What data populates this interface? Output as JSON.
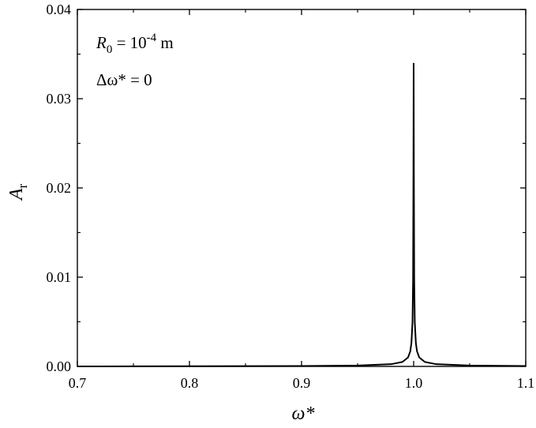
{
  "chart_data": {
    "type": "line",
    "title": "",
    "xlabel": "ω*",
    "ylabel": "A",
    "ylabel_subscript": "r",
    "xlim": [
      0.7,
      1.1
    ],
    "ylim": [
      0,
      0.04
    ],
    "x_ticks": [
      0.7,
      0.8,
      0.9,
      1.0,
      1.1
    ],
    "x_tick_labels": [
      "0.7",
      "0.8",
      "0.9",
      "1.0",
      "1.1"
    ],
    "y_ticks": [
      0,
      0.01,
      0.02,
      0.03,
      0.04
    ],
    "y_tick_labels": [
      "0.00",
      "0.01",
      "0.02",
      "0.03",
      "0.04"
    ],
    "grid": false,
    "legend": "none",
    "line_color": "#000000",
    "series": [
      {
        "x": [
          0.7,
          0.75,
          0.8,
          0.85,
          0.9,
          0.95,
          0.98,
          0.99,
          0.995,
          0.997,
          0.998,
          0.999,
          0.9995,
          0.9998,
          1.0,
          1.0002,
          1.0005,
          1.001,
          1.002,
          1.003,
          1.005,
          1.01,
          1.02,
          1.05,
          1.1
        ],
        "y": [
          0.0,
          1e-05,
          2e-05,
          3e-05,
          5e-05,
          0.0001,
          0.00025,
          0.0005,
          0.001,
          0.0017,
          0.0026,
          0.005,
          0.0098,
          0.022,
          0.034,
          0.022,
          0.0098,
          0.005,
          0.0026,
          0.0017,
          0.001,
          0.0005,
          0.00025,
          0.0001,
          5e-05
        ]
      }
    ],
    "annotations": [
      {
        "main": "R",
        "sub": "0",
        "mid": " = 10",
        "sup": "-4",
        "tail": " m"
      },
      {
        "main": "Δω* = 0"
      }
    ]
  }
}
